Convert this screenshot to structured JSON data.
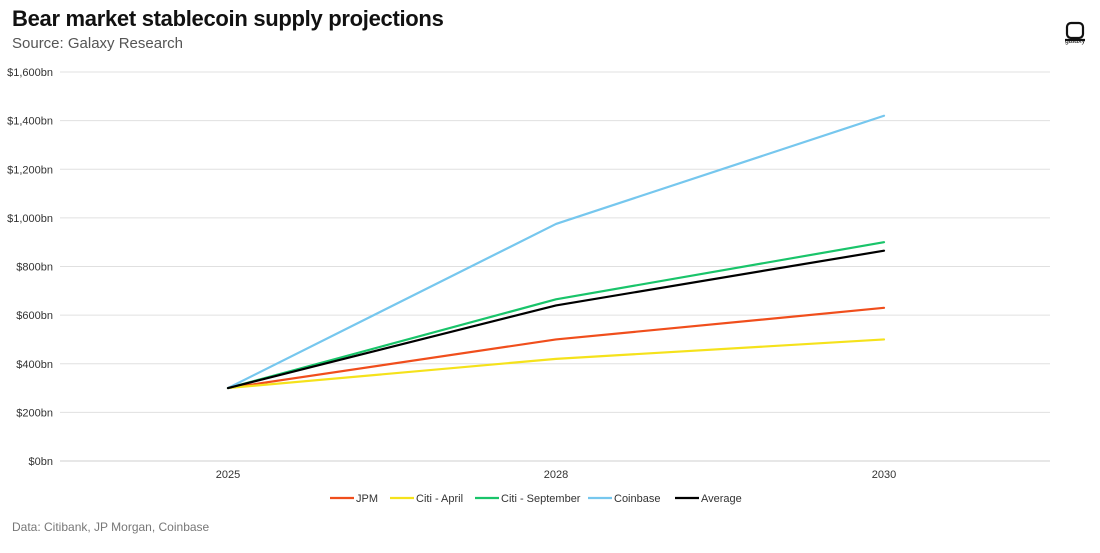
{
  "header": {
    "title": "Bear market stablecoin supply projections",
    "subtitle": "Source: Galaxy Research",
    "logo_text": "galaxy"
  },
  "footer": {
    "source_note": "Data: Citibank, JP Morgan, Coinbase"
  },
  "colors": {
    "JPM": "#f04e1c",
    "Citi - April": "#f5e21b",
    "Citi - September": "#19c46a",
    "Coinbase": "#76c7ee",
    "Average": "#000000",
    "grid": "#e0e0e0",
    "axis": "#cfcfcf"
  },
  "chart_data": {
    "type": "line",
    "title": "Bear market stablecoin supply projections",
    "x": [
      "2025",
      "2028",
      "2030"
    ],
    "ylim": [
      0,
      1600
    ],
    "yticks": [
      0,
      200,
      400,
      600,
      800,
      1000,
      1200,
      1400,
      1600
    ],
    "ytick_labels": [
      "$0bn",
      "$200bn",
      "$400bn",
      "$600bn",
      "$800bn",
      "$1,000bn",
      "$1,200bn",
      "$1,400bn",
      "$1,600bn"
    ],
    "grid": true,
    "legend_position": "bottom",
    "series": [
      {
        "name": "JPM",
        "values": [
          300,
          500,
          630
        ]
      },
      {
        "name": "Citi - April",
        "values": [
          300,
          420,
          500
        ]
      },
      {
        "name": "Citi - September",
        "values": [
          300,
          665,
          900
        ]
      },
      {
        "name": "Coinbase",
        "values": [
          300,
          975,
          1420
        ]
      },
      {
        "name": "Average",
        "values": [
          300,
          640,
          865
        ]
      }
    ]
  }
}
